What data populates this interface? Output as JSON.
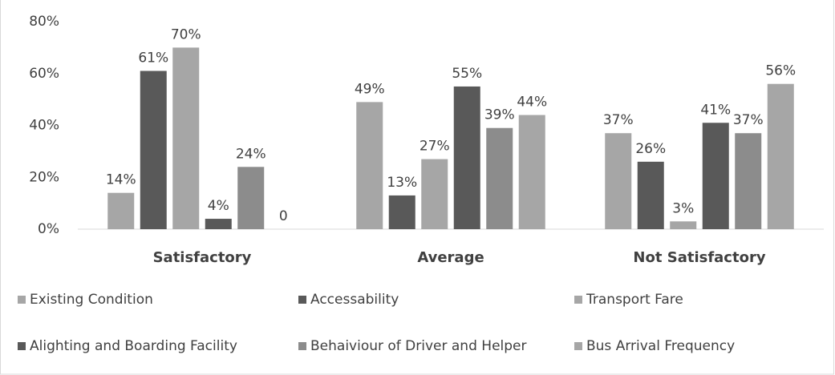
{
  "chart_data": {
    "type": "bar",
    "categories": [
      "Satisfactory",
      "Average",
      "Not Satisfactory"
    ],
    "series": [
      {
        "name": "Existing Condition",
        "color": "#a6a6a6",
        "values": [
          14,
          49,
          37
        ],
        "value_labels": [
          "14%",
          "49%",
          "37%"
        ]
      },
      {
        "name": "Accessability",
        "color": "#595959",
        "values": [
          61,
          13,
          26
        ],
        "value_labels": [
          "61%",
          "13%",
          "26%"
        ]
      },
      {
        "name": "Transport Fare",
        "color": "#a6a6a6",
        "values": [
          70,
          27,
          3
        ],
        "value_labels": [
          "70%",
          "27%",
          "3%"
        ]
      },
      {
        "name": "Alighting and Boarding Facility",
        "color": "#595959",
        "values": [
          4,
          55,
          41
        ],
        "value_labels": [
          "4%",
          "55%",
          "41%"
        ]
      },
      {
        "name": "Behaiviour of Driver and Helper",
        "color": "#8c8c8c",
        "values": [
          24,
          39,
          37
        ],
        "value_labels": [
          "24%",
          "39%",
          "37%"
        ]
      },
      {
        "name": "Bus Arrival Frequency",
        "color": "#a6a6a6",
        "values": [
          0,
          44,
          56
        ],
        "value_labels": [
          "0",
          "44%",
          "56%"
        ]
      }
    ],
    "ylim": [
      0,
      80
    ],
    "yticks": [
      {
        "value": 0,
        "label": "0%"
      },
      {
        "value": 20,
        "label": "20%"
      },
      {
        "value": 40,
        "label": "40%"
      },
      {
        "value": 60,
        "label": "60%"
      },
      {
        "value": 80,
        "label": "80%"
      }
    ],
    "grid": false,
    "legend": "bottom"
  }
}
